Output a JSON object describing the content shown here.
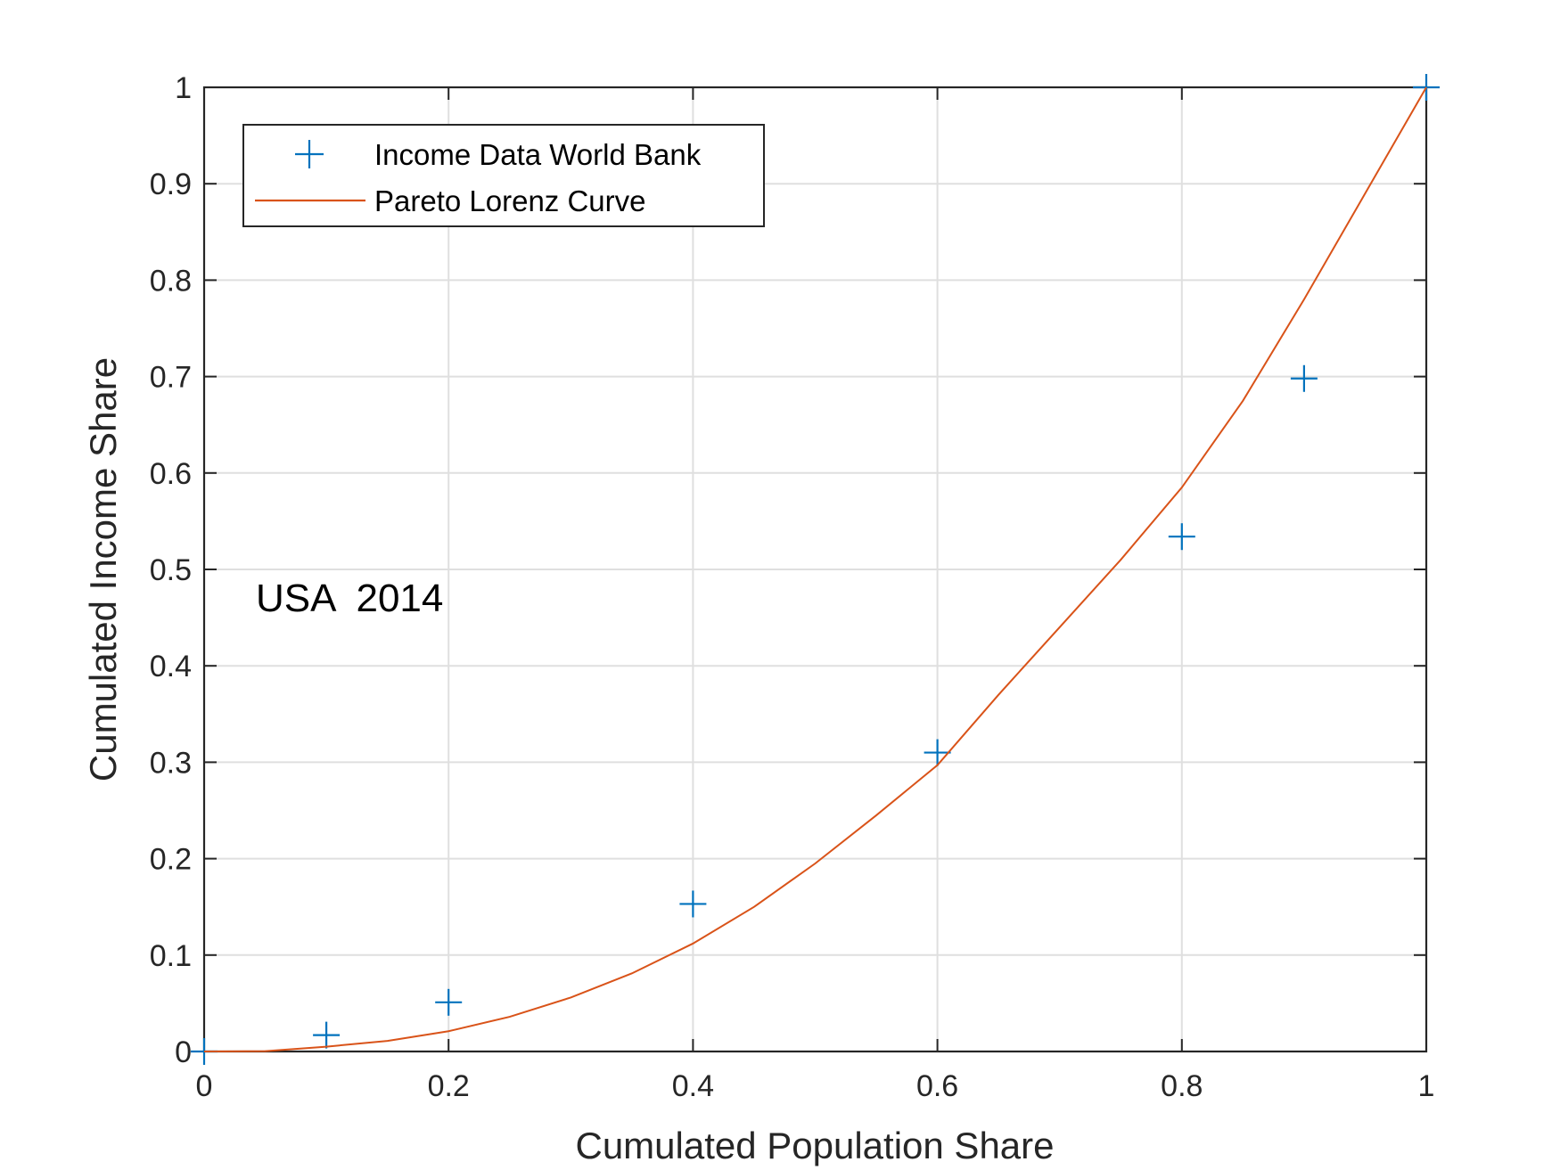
{
  "chart_data": {
    "type": "line",
    "xlabel": "Cumulated Population Share",
    "ylabel": "Cumulated Income Share",
    "xlim": [
      0,
      1
    ],
    "ylim": [
      0,
      1
    ],
    "xticks": [
      "0",
      "0.2",
      "0.4",
      "0.6",
      "0.8",
      "1"
    ],
    "yticks": [
      "0",
      "0.1",
      "0.2",
      "0.3",
      "0.4",
      "0.5",
      "0.6",
      "0.7",
      "0.8",
      "0.9",
      "1"
    ],
    "grid": true,
    "legend_position": "top-left",
    "annotation": "USA  2014",
    "series": [
      {
        "name": "Income Data World Bank",
        "kind": "markers",
        "marker": "plus",
        "color": "#0072BD",
        "x": [
          0,
          0.1,
          0.2,
          0.4,
          0.6,
          0.8,
          0.9,
          1.0
        ],
        "y": [
          0,
          0.017,
          0.051,
          0.153,
          0.31,
          0.534,
          0.698,
          1.0
        ]
      },
      {
        "name": "Pareto Lorenz Curve",
        "kind": "line",
        "color": "#D95319",
        "x": [
          0,
          0.05,
          0.1,
          0.15,
          0.2,
          0.25,
          0.3,
          0.35,
          0.4,
          0.45,
          0.5,
          0.55,
          0.6,
          0.65,
          0.7,
          0.75,
          0.8,
          0.85,
          0.9,
          0.95,
          1.0
        ],
        "y": [
          0,
          0.0003,
          0.005,
          0.011,
          0.021,
          0.036,
          0.056,
          0.081,
          0.112,
          0.15,
          0.195,
          0.245,
          0.297,
          0.37,
          0.44,
          0.51,
          0.585,
          0.675,
          0.78,
          0.89,
          1.0
        ]
      }
    ]
  }
}
